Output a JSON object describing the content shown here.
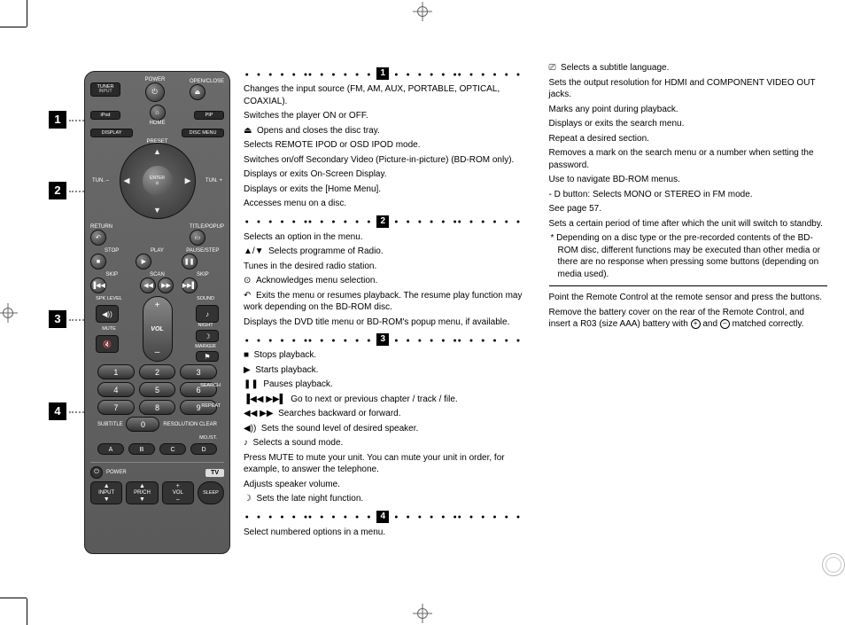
{
  "crop_marks": true,
  "remote": {
    "row1": {
      "left_top": "TUNER",
      "left_bot": "INPUT",
      "center": "POWER",
      "center_icon": "⏻",
      "right_top": "OPEN/CLOSE",
      "right_icon": "⏏"
    },
    "row2": {
      "left_top": "iPod",
      "left_bot": "",
      "center": "HOME",
      "center_icon": "⌂",
      "right": "PIP"
    },
    "row3": {
      "left": "DISPLAY",
      "right": "DISC MENU"
    },
    "dpad": {
      "preset": "PRESET",
      "tun": "TUN.",
      "enter_top": "ENTER",
      "enter_icon": "⊙"
    },
    "row_return": {
      "left": "RETURN",
      "left_icon": "↶",
      "right": "TITLE/POPUP"
    },
    "transport_labels": {
      "stop": "STOP",
      "play": "PLAY",
      "pause": "PAUSE/STEP"
    },
    "transport_icons": {
      "stop": "■",
      "play": "▶",
      "pause": "❚❚"
    },
    "skip_labels": {
      "skip": "SKIP",
      "scan": "SCAN"
    },
    "skip_icons": {
      "prev": "▐◀◀",
      "rew": "◀◀",
      "fwd": "▶▶",
      "next": "▶▶▌"
    },
    "vol": {
      "spk": "SPK LEVEL",
      "sound": "SOUND",
      "mute": "MUTE",
      "night": "NIGHT",
      "marker": "MARKER",
      "vol": "VOL",
      "plus": "+",
      "minus": "–",
      "spk_icon": "◀))",
      "sound_icon": "♪",
      "mute_icon": "🔇",
      "night_icon": "☽",
      "marker_icon": "⚑"
    },
    "numbers": [
      "1",
      "2",
      "3",
      "4",
      "5",
      "6",
      "7",
      "8",
      "9",
      "0"
    ],
    "num_side": {
      "search": "SEARCH",
      "repeat": "REPEAT",
      "subtitle": "SUBTITLE",
      "resolution": "RESOLUTION",
      "clear": "CLEAR",
      "most": "MO./ST."
    },
    "abc": [
      "A",
      "B",
      "C",
      "D"
    ],
    "tv": {
      "power": "POWER",
      "label": "TV",
      "input": "INPUT",
      "prch": "PR/CH",
      "vol": "VOL",
      "sleep": "SLEEP"
    }
  },
  "sections": {
    "s1": [
      {
        "t": "Changes the input source (FM, AM, AUX, PORTABLE, OPTICAL, COAXIAL)."
      },
      {
        "t": "Switches the player ON or OFF."
      },
      {
        "i": "⏏",
        "t": "Opens and closes the disc tray."
      },
      {
        "t": "Selects REMOTE IPOD or OSD IPOD mode."
      },
      {
        "t": "Switches on/off Secondary Video (Picture-in-picture) (BD-ROM only)."
      },
      {
        "t": "Displays or exits On-Screen Display."
      },
      {
        "t": "Displays or exits the [Home Menu]."
      },
      {
        "t": "Accesses menu on a disc."
      }
    ],
    "s2": [
      {
        "t": "Selects an option in the menu."
      },
      {
        "i": "▲/▼",
        "t": "Selects programme of Radio."
      },
      {
        "t": "Tunes in the desired radio station."
      },
      {
        "i": "⊙",
        "t": "Acknowledges menu selection."
      },
      {
        "i": "↶",
        "t": "Exits the menu or resumes playback. The resume play function may work depending on the BD-ROM disc."
      },
      {
        "t": "Displays the DVD title menu or BD-ROM's popup menu, if available."
      }
    ],
    "s3": [
      {
        "i": "■",
        "t": "Stops playback."
      },
      {
        "i": "▶",
        "t": "Starts playback."
      },
      {
        "i": "❚❚",
        "t": "Pauses playback."
      },
      {
        "i": "▐◀◀   ▶▶▌",
        "t": "Go to next or previous chapter / track / file."
      },
      {
        "i": "◀◀   ▶▶",
        "t": "Searches backward or forward."
      },
      {
        "i": "◀))",
        "t": "Sets the sound level of desired speaker."
      },
      {
        "i": "♪",
        "t": "Selects a sound mode."
      },
      {
        "t": "Press MUTE to mute your unit. You can mute your unit in order, for example, to answer the telephone."
      },
      {
        "t": "Adjusts speaker volume."
      },
      {
        "i": "☽",
        "t": "Sets the late night function."
      }
    ],
    "s4": [
      {
        "t": "Select numbered options in a menu."
      },
      {
        "i": "⎚",
        "t": "Selects a subtitle language."
      },
      {
        "t": "Sets the output resolution for HDMI and COMPONENT VIDEO OUT jacks."
      },
      {
        "t": "Marks any point during playback."
      },
      {
        "t": "Displays or exits the search menu."
      },
      {
        "t": "Repeat a desired section."
      },
      {
        "t": "Removes a mark on the search menu or a number when setting the password."
      },
      {
        "t": "Use to navigate BD-ROM menus."
      },
      {
        "t": "- D button: Selects MONO or STEREO in FM mode."
      },
      {
        "t": "See page 57."
      },
      {
        "t": "Sets a certain period of time after which the unit will switch to standby."
      }
    ],
    "footnote": "Depending on a disc type or the pre-recorded contents of the BD-ROM disc, different functions may be executed than other media or there are no response when pressing some buttons (depending on media used).",
    "instr1": "Point the Remote Control at the remote sensor and press the buttons.",
    "instr2a": "Remove the battery cover on the rear of the Remote Control, and insert a R03 (size AAA) battery with ",
    "instr2b": " and ",
    "instr2c": " matched correctly."
  },
  "section_offsets": {
    "s1": 55,
    "s2": 135,
    "s3": 280,
    "s4": 384
  },
  "colors": {
    "bg": "#ffffff",
    "text": "#000000",
    "remote_body": "#606060",
    "button": "#2a2a2a"
  }
}
